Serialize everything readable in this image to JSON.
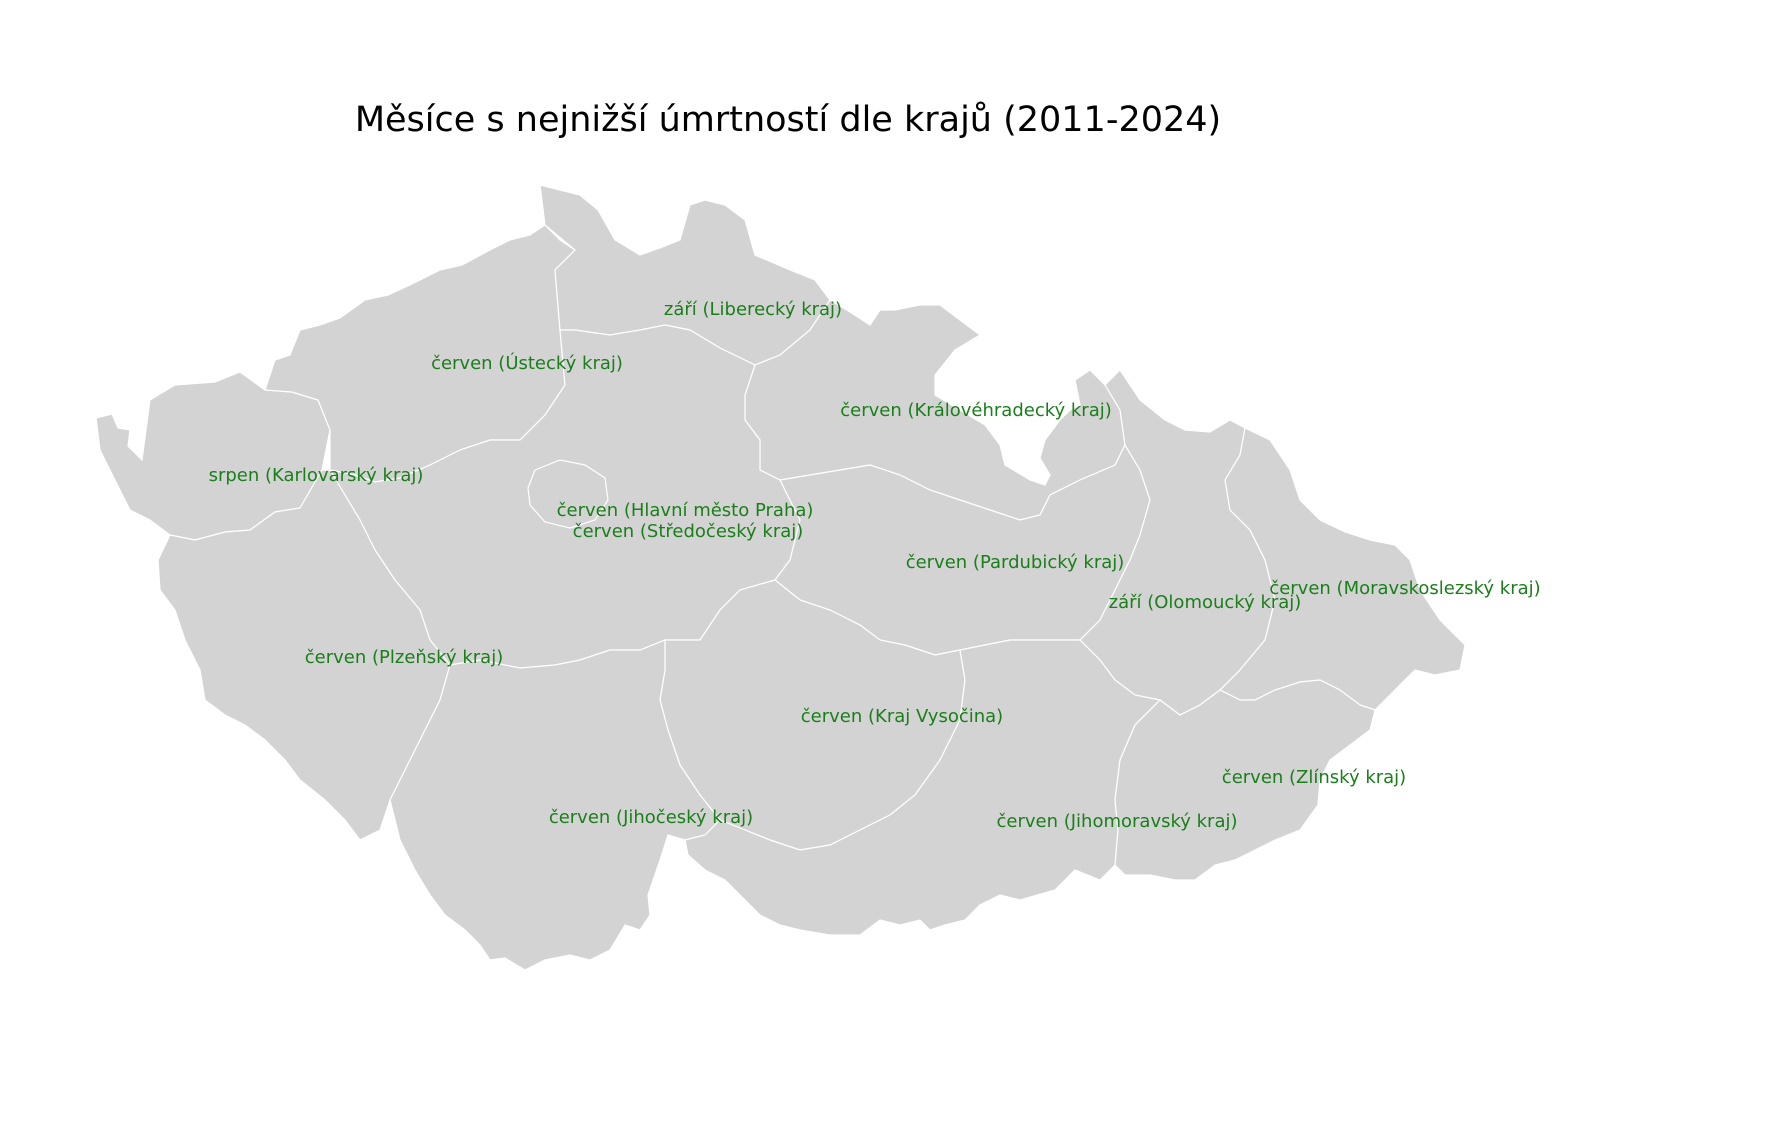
{
  "title": "Měsíce s nejnižší úmrtností dle krajů (2011-2024)",
  "colors": {
    "region_fill": "#d3d3d3",
    "border": "#ffffff",
    "label": "#1a7f1a"
  },
  "regions": [
    {
      "id": "karlovarsky",
      "label": "srpen (Karlovarský kraj)"
    },
    {
      "id": "ustecky",
      "label": "červen (Ústecký kraj)"
    },
    {
      "id": "liberecky",
      "label": "září (Liberecký kraj)"
    },
    {
      "id": "kralovehradecky",
      "label": "červen (Královéhradecký kraj)"
    },
    {
      "id": "praha",
      "label": "červen (Hlavní město Praha)"
    },
    {
      "id": "stredocesky",
      "label": "červen (Středočeský kraj)"
    },
    {
      "id": "pardubicky",
      "label": "červen (Pardubický kraj)"
    },
    {
      "id": "olomoucky",
      "label": "září (Olomoucký kraj)"
    },
    {
      "id": "moravskoslezsky",
      "label": "červen (Moravskoslezský kraj)"
    },
    {
      "id": "plzensky",
      "label": "červen (Plzeňský kraj)"
    },
    {
      "id": "vysocina",
      "label": "červen (Kraj Vysočina)"
    },
    {
      "id": "zlinsky",
      "label": "červen (Zlínský kraj)"
    },
    {
      "id": "jihocesky",
      "label": "červen (Jihočeský kraj)"
    },
    {
      "id": "jihomoravsky",
      "label": "červen (Jihomoravský kraj)"
    }
  ]
}
